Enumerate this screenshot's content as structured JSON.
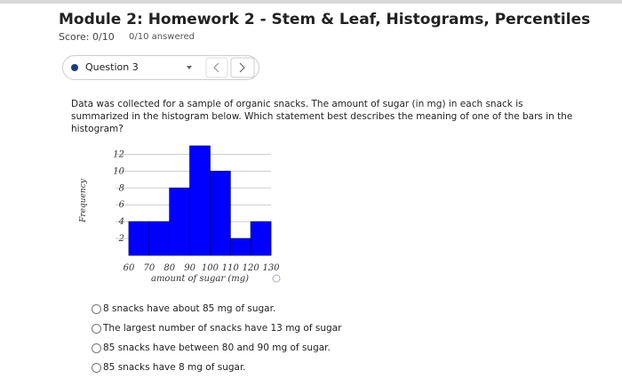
{
  "header": {
    "title": "Module 2: Homework 2 - Stem & Leaf, Histograms, Percentiles",
    "score": "Score: 0/10",
    "answered": "0/10 answered"
  },
  "question": {
    "label": "Question 3",
    "text": "Data was collected for a sample of organic snacks. The amount of sugar (in mg) in each snack is summarized in the histogram below. Which statement best describes the meaning of one of the bars in the histogram?"
  },
  "chart_data": {
    "type": "histogram",
    "bins": [
      60,
      70,
      80,
      90,
      100,
      110,
      120,
      130
    ],
    "counts": [
      4,
      4,
      8,
      13,
      10,
      2,
      4
    ],
    "color": "#0000ff",
    "xlabel": "amount of sugar (mg)",
    "ylabel": "Frequency",
    "xlim": [
      60,
      130
    ],
    "xticks": [
      60,
      70,
      80,
      90,
      100,
      110,
      120,
      130
    ],
    "ylim": [
      0,
      13
    ],
    "yticks": [
      2,
      4,
      6,
      8,
      10,
      12
    ],
    "grid": true
  },
  "options": [
    "8 snacks have about 85 mg of sugar.",
    "The largest number of snacks have 13 mg of sugar",
    "85 snacks have between 80 and 90 mg of sugar.",
    "85 snacks have 8 mg of sugar."
  ]
}
